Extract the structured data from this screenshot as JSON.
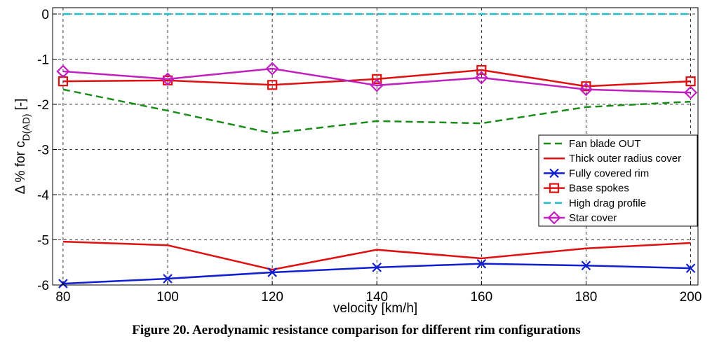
{
  "chart_data": {
    "type": "line",
    "y_label": {
      "text": "Δ % for c",
      "subscript": "D(AD)",
      "suffix": "[-]"
    },
    "x_label": "velocity [km/h]",
    "caption": "Figure 20. Aerodynamic resistance comparison for different rim configurations",
    "x": [
      80,
      100,
      120,
      140,
      160,
      180,
      200
    ],
    "xlim": [
      78,
      201.4
    ],
    "xticks": [
      80,
      100,
      120,
      140,
      160,
      180,
      200
    ],
    "ylim": [
      -6,
      0.14
    ],
    "yticks": [
      -6,
      -5,
      -4,
      -3,
      -2,
      -1,
      0
    ],
    "grid": true,
    "legend": "right",
    "series": [
      {
        "name": "Fan blade OUT",
        "color": "#1a8c1a",
        "dash": "dashed",
        "marker": "none",
        "values": [
          -1.67,
          -2.14,
          -2.64,
          -2.37,
          -2.42,
          -2.06,
          -1.94
        ]
      },
      {
        "name": "Thick outer radius cover",
        "color": "#e01010",
        "dash": "solid",
        "marker": "none",
        "values": [
          -5.04,
          -5.12,
          -5.66,
          -5.22,
          -5.41,
          -5.19,
          -5.07
        ]
      },
      {
        "name": "Fully covered rim",
        "color": "#1020d0",
        "dash": "solid",
        "marker": "x",
        "values": [
          -5.97,
          -5.86,
          -5.72,
          -5.61,
          -5.53,
          -5.57,
          -5.63
        ]
      },
      {
        "name": "Base spokes",
        "color": "#e01010",
        "dash": "solid",
        "marker": "square",
        "values": [
          -1.49,
          -1.47,
          -1.57,
          -1.44,
          -1.24,
          -1.6,
          -1.49
        ]
      },
      {
        "name": "High drag profile",
        "color": "#20c0c8",
        "dash": "dashed",
        "marker": "none",
        "values": [
          0,
          0,
          0,
          0,
          0,
          0,
          0
        ]
      },
      {
        "name": "Star cover",
        "color": "#c020c0",
        "dash": "solid",
        "marker": "diamond",
        "values": [
          -1.27,
          -1.44,
          -1.21,
          -1.58,
          -1.41,
          -1.67,
          -1.74
        ]
      }
    ]
  }
}
